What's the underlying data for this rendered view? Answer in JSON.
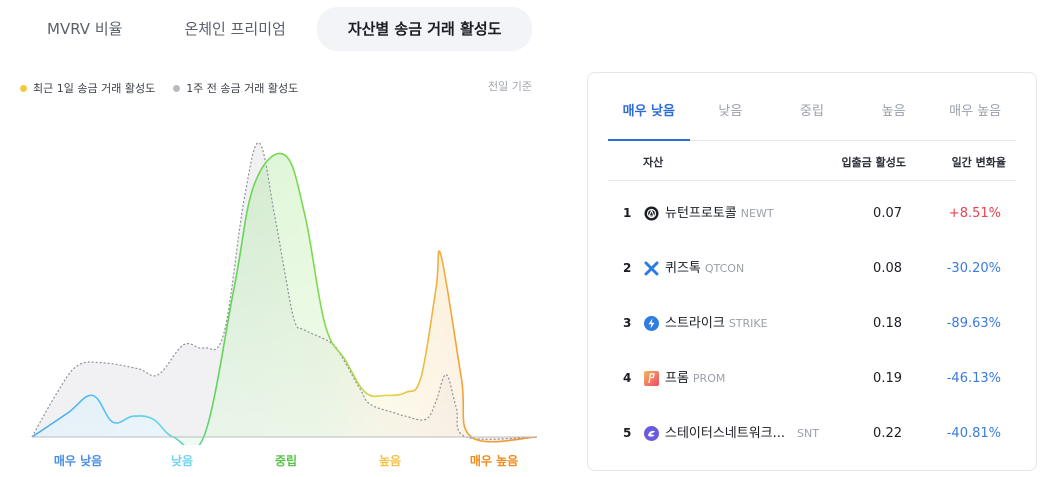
{
  "tabs": [
    {
      "label": "MVRV 비율",
      "active": false
    },
    {
      "label": "온체인 프리미엄",
      "active": false
    },
    {
      "label": "자산별 송금 거래 활성도",
      "active": true
    }
  ],
  "legend": {
    "recent": {
      "label": "최근 1일 송금 거래 활성도",
      "color": "#f5c842"
    },
    "week": {
      "label": "1주 전 송금 거래 활성도",
      "color": "#b7bbc2"
    }
  },
  "basis": "전일 기준",
  "chart_data": {
    "type": "area",
    "title": "",
    "x_labels": [
      {
        "label": "매우 낮음",
        "color": "#4a90e2"
      },
      {
        "label": "낮음",
        "color": "#6fd3f2"
      },
      {
        "label": "중립",
        "color": "#59c44a"
      },
      {
        "label": "높음",
        "color": "#f5c04a"
      },
      {
        "label": "매우 높음",
        "color": "#f08a1c"
      }
    ],
    "xlim": [
      0,
      1
    ],
    "ylim": [
      0,
      100
    ],
    "series": [
      {
        "name": "최근 1일 송금 거래 활성도",
        "points": [
          [
            0,
            0
          ],
          [
            0.07,
            8
          ],
          [
            0.12,
            14
          ],
          [
            0.16,
            5
          ],
          [
            0.2,
            7
          ],
          [
            0.24,
            6
          ],
          [
            0.28,
            0
          ],
          [
            0.34,
            0
          ],
          [
            0.4,
            50
          ],
          [
            0.44,
            85
          ],
          [
            0.5,
            95
          ],
          [
            0.54,
            75
          ],
          [
            0.58,
            38
          ],
          [
            0.62,
            26
          ],
          [
            0.66,
            15
          ],
          [
            0.7,
            14
          ],
          [
            0.74,
            15
          ],
          [
            0.77,
            20
          ],
          [
            0.8,
            50
          ],
          [
            0.81,
            61
          ],
          [
            0.85,
            20
          ],
          [
            0.87,
            0
          ],
          [
            1,
            0
          ]
        ]
      },
      {
        "name": "1주 전 송금 거래 활성도",
        "points": [
          [
            0,
            0
          ],
          [
            0.05,
            15
          ],
          [
            0.09,
            24
          ],
          [
            0.14,
            25
          ],
          [
            0.21,
            23
          ],
          [
            0.25,
            21
          ],
          [
            0.3,
            31
          ],
          [
            0.34,
            30
          ],
          [
            0.38,
            35
          ],
          [
            0.42,
            80
          ],
          [
            0.45,
            99
          ],
          [
            0.48,
            75
          ],
          [
            0.5,
            56
          ],
          [
            0.52,
            39
          ],
          [
            0.54,
            36
          ],
          [
            0.59,
            32
          ],
          [
            0.61,
            28
          ],
          [
            0.65,
            16
          ],
          [
            0.67,
            11
          ],
          [
            0.72,
            8
          ],
          [
            0.74,
            7
          ],
          [
            0.78,
            6
          ],
          [
            0.8,
            12
          ],
          [
            0.82,
            21
          ],
          [
            0.84,
            10
          ],
          [
            0.86,
            0
          ],
          [
            1,
            0
          ]
        ]
      }
    ]
  },
  "card": {
    "tabs": [
      {
        "label": "매우 낮음",
        "active": true
      },
      {
        "label": "낮음",
        "active": false
      },
      {
        "label": "중립",
        "active": false
      },
      {
        "label": "높음",
        "active": false
      },
      {
        "label": "매우 높음",
        "active": false
      }
    ],
    "headers": {
      "asset": "자산",
      "activity": "입출금 활성도",
      "change": "일간 변화율"
    },
    "rows": [
      {
        "rank": "1",
        "name": "뉴턴프로토콜",
        "symbol": "NEWT",
        "value": "0.07",
        "change": "+8.51%",
        "change_color": "#e8434f",
        "icon": "newt-icon",
        "icon_color": "#1a1d23"
      },
      {
        "rank": "2",
        "name": "퀴즈톡",
        "symbol": "QTCON",
        "value": "0.08",
        "change": "-30.20%",
        "change_color": "#3a7be0",
        "icon": "qtcon-icon",
        "icon_color": "#2c7be5"
      },
      {
        "rank": "3",
        "name": "스트라이크",
        "symbol": "STRIKE",
        "value": "0.18",
        "change": "-89.63%",
        "change_color": "#3a7be0",
        "icon": "strike-icon",
        "icon_color": "#2f7de1"
      },
      {
        "rank": "4",
        "name": "프롬",
        "symbol": "PROM",
        "value": "0.19",
        "change": "-46.13%",
        "change_color": "#3a7be0",
        "icon": "prom-icon",
        "icon_color": "#f26a5a"
      },
      {
        "rank": "5",
        "name": "스테이터스네트워크...",
        "symbol": "SNT",
        "value": "0.22",
        "change": "-40.81%",
        "change_color": "#3a7be0",
        "icon": "snt-icon",
        "icon_color": "#6a5ae0"
      }
    ]
  }
}
